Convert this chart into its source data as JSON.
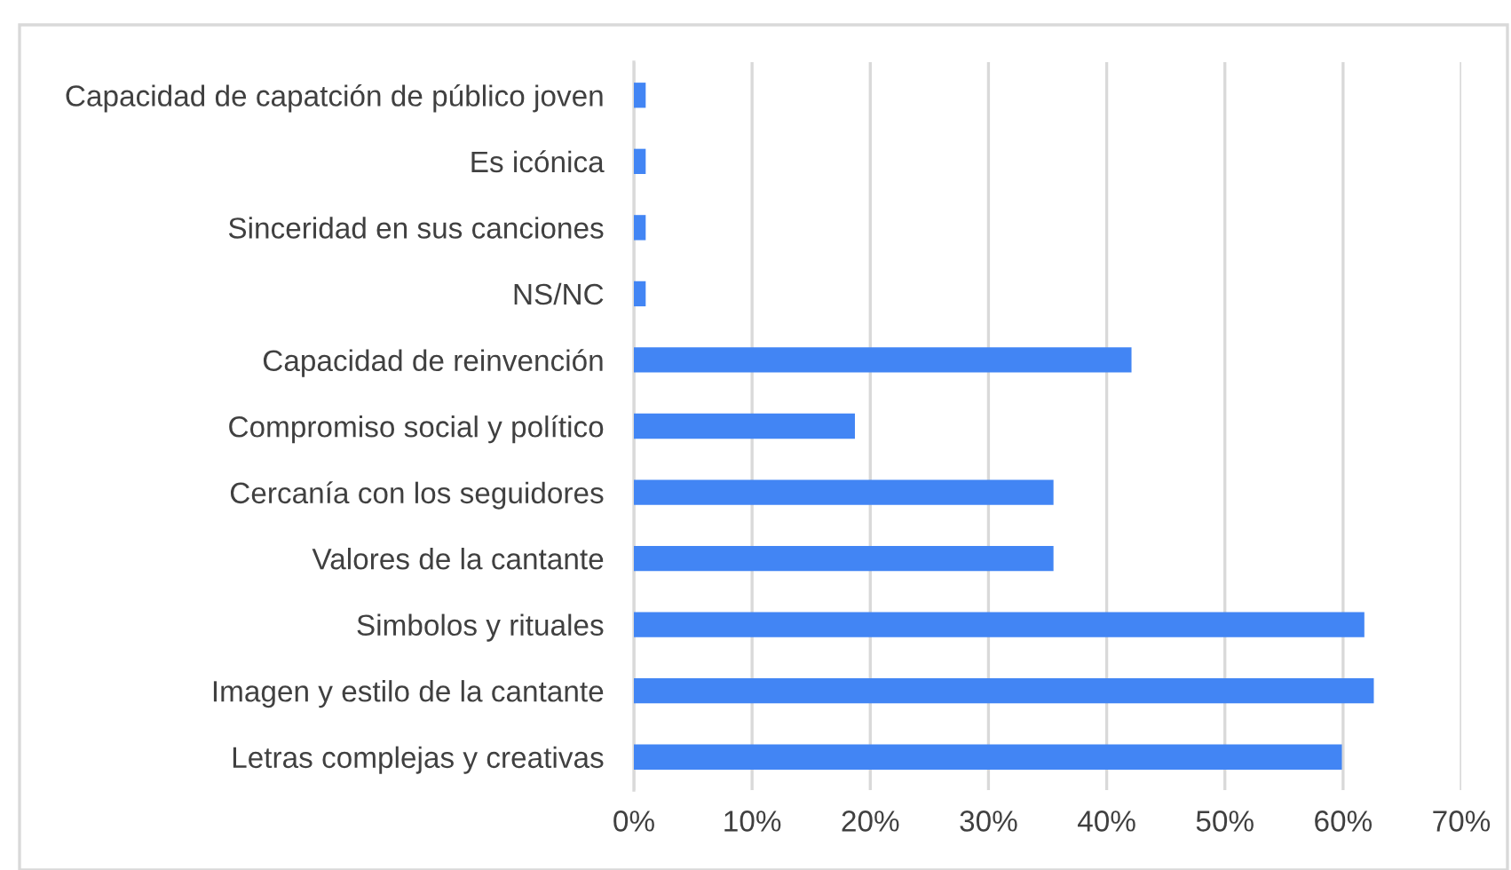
{
  "chart_data": {
    "type": "bar",
    "orientation": "horizontal",
    "categories": [
      "Capacidad de capatción de público joven",
      "Es icónica",
      "Sinceridad en sus canciones",
      "NS/NC",
      "Capacidad de reinvención",
      "Compromiso social y político",
      "Cercanía con los seguidores",
      "Valores de la cantante",
      "Simbolos y rituales",
      "Imagen y estilo de la cantante",
      "Letras complejas y creativas"
    ],
    "values": [
      1.0,
      1.0,
      1.0,
      1.0,
      42.1,
      18.7,
      35.5,
      35.5,
      61.8,
      62.6,
      59.9
    ],
    "color": "#4285f4",
    "xlim": [
      0,
      70
    ],
    "xticks": [
      {
        "value": 0,
        "label": "0%"
      },
      {
        "value": 10,
        "label": "10%"
      },
      {
        "value": 20,
        "label": "20%"
      },
      {
        "value": 30,
        "label": "30%"
      },
      {
        "value": 40,
        "label": "40%"
      },
      {
        "value": 50,
        "label": "50%"
      },
      {
        "value": 60,
        "label": "60%"
      },
      {
        "value": 70,
        "label": "70%"
      }
    ],
    "grid": "x",
    "legend": false
  }
}
